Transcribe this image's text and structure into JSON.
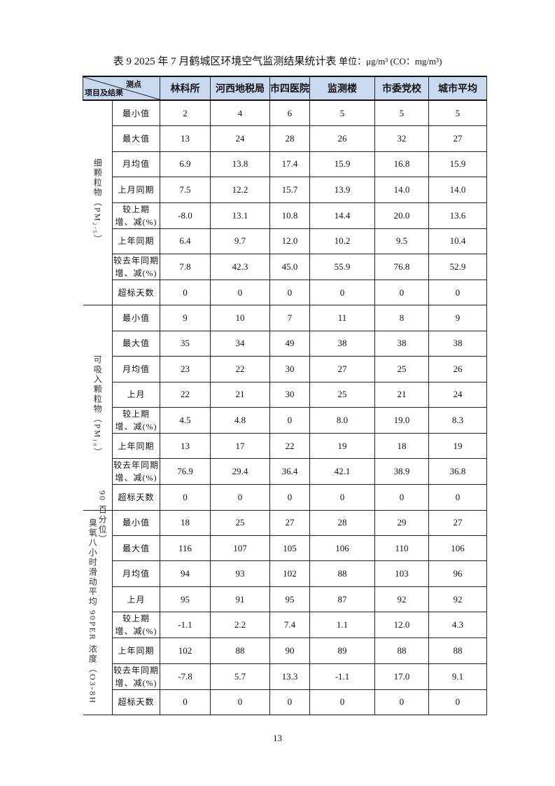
{
  "caption": {
    "title": "表 9  2025 年 7 月鹤城区环境空气监测结果统计表",
    "unit": "单位：μg/m³ (CO：mg/m³)"
  },
  "header": {
    "corner_top": "测点",
    "corner_bottom": "项目及结果",
    "stations": [
      "林科所",
      "河西地税局",
      "市四医院",
      "监测楼",
      "市委党校",
      "城市平均"
    ]
  },
  "groups": [
    {
      "label": "细颗粒物（PM₂.₅）",
      "label2": "",
      "rows": [
        {
          "item": "最小值",
          "values": [
            "2",
            "4",
            "6",
            "5",
            "5",
            "5"
          ]
        },
        {
          "item": "最大值",
          "values": [
            "13",
            "24",
            "28",
            "26",
            "32",
            "27"
          ]
        },
        {
          "item": "月均值",
          "values": [
            "6.9",
            "13.8",
            "17.4",
            "15.9",
            "16.8",
            "15.9"
          ]
        },
        {
          "item": "上月同期",
          "values": [
            "7.5",
            "12.2",
            "15.7",
            "13.9",
            "14.0",
            "14.0"
          ]
        },
        {
          "item": "较上期\n增、减(%)",
          "values": [
            "-8.0",
            "13.1",
            "10.8",
            "14.4",
            "20.0",
            "13.6"
          ]
        },
        {
          "item": "上年同期",
          "values": [
            "6.4",
            "9.7",
            "12.0",
            "10.2",
            "9.5",
            "10.4"
          ]
        },
        {
          "item": "较去年同期\n增、减(%)",
          "values": [
            "7.8",
            "42.3",
            "45.0",
            "55.9",
            "76.8",
            "52.9"
          ]
        },
        {
          "item": "超标天数",
          "values": [
            "0",
            "0",
            "0",
            "0",
            "0",
            "0"
          ]
        }
      ]
    },
    {
      "label": "可吸入颗粒物（PM₁₀）",
      "label2": "",
      "rows": [
        {
          "item": "最小值",
          "values": [
            "9",
            "10",
            "7",
            "11",
            "8",
            "9"
          ]
        },
        {
          "item": "最大值",
          "values": [
            "35",
            "34",
            "49",
            "38",
            "38",
            "38"
          ]
        },
        {
          "item": "月均值",
          "values": [
            "23",
            "22",
            "30",
            "27",
            "25",
            "26"
          ]
        },
        {
          "item": "上月",
          "values": [
            "22",
            "21",
            "30",
            "25",
            "21",
            "24"
          ]
        },
        {
          "item": "较上期\n增、减(%)",
          "values": [
            "4.5",
            "4.8",
            "0",
            "8.0",
            "19.0",
            "8.3"
          ]
        },
        {
          "item": "上年同期",
          "values": [
            "13",
            "17",
            "22",
            "19",
            "18",
            "19"
          ]
        },
        {
          "item": "较去年同期\n增、减(%)",
          "values": [
            "76.9",
            "29.4",
            "36.4",
            "42.1",
            "38.9",
            "36.8"
          ]
        },
        {
          "item": "超标天数",
          "values": [
            "0",
            "0",
            "0",
            "0",
            "0",
            "0"
          ]
        }
      ]
    },
    {
      "label": "臭氧八小时滑动平均 90PER 浓度（O3-8H",
      "label2": "90 百分位）",
      "rows": [
        {
          "item": "最小值",
          "values": [
            "18",
            "25",
            "27",
            "28",
            "29",
            "27"
          ]
        },
        {
          "item": "最大值",
          "values": [
            "116",
            "107",
            "105",
            "106",
            "110",
            "106"
          ]
        },
        {
          "item": "月均值",
          "values": [
            "94",
            "93",
            "102",
            "88",
            "103",
            "96"
          ]
        },
        {
          "item": "上月",
          "values": [
            "95",
            "91",
            "95",
            "87",
            "92",
            "92"
          ]
        },
        {
          "item": "较上期\n增、减(%)",
          "values": [
            "-1.1",
            "2.2",
            "7.4",
            "1.1",
            "12.0",
            "4.3"
          ]
        },
        {
          "item": "上年同期",
          "values": [
            "102",
            "88",
            "90",
            "89",
            "88",
            "88"
          ]
        },
        {
          "item": "较去年同期\n增、减(%)",
          "values": [
            "-7.8",
            "5.7",
            "13.3",
            "-1.1",
            "17.0",
            "9.1"
          ]
        },
        {
          "item": "超标天数",
          "values": [
            "0",
            "0",
            "0",
            "0",
            "0",
            "0"
          ]
        }
      ]
    }
  ],
  "page_number": "13"
}
